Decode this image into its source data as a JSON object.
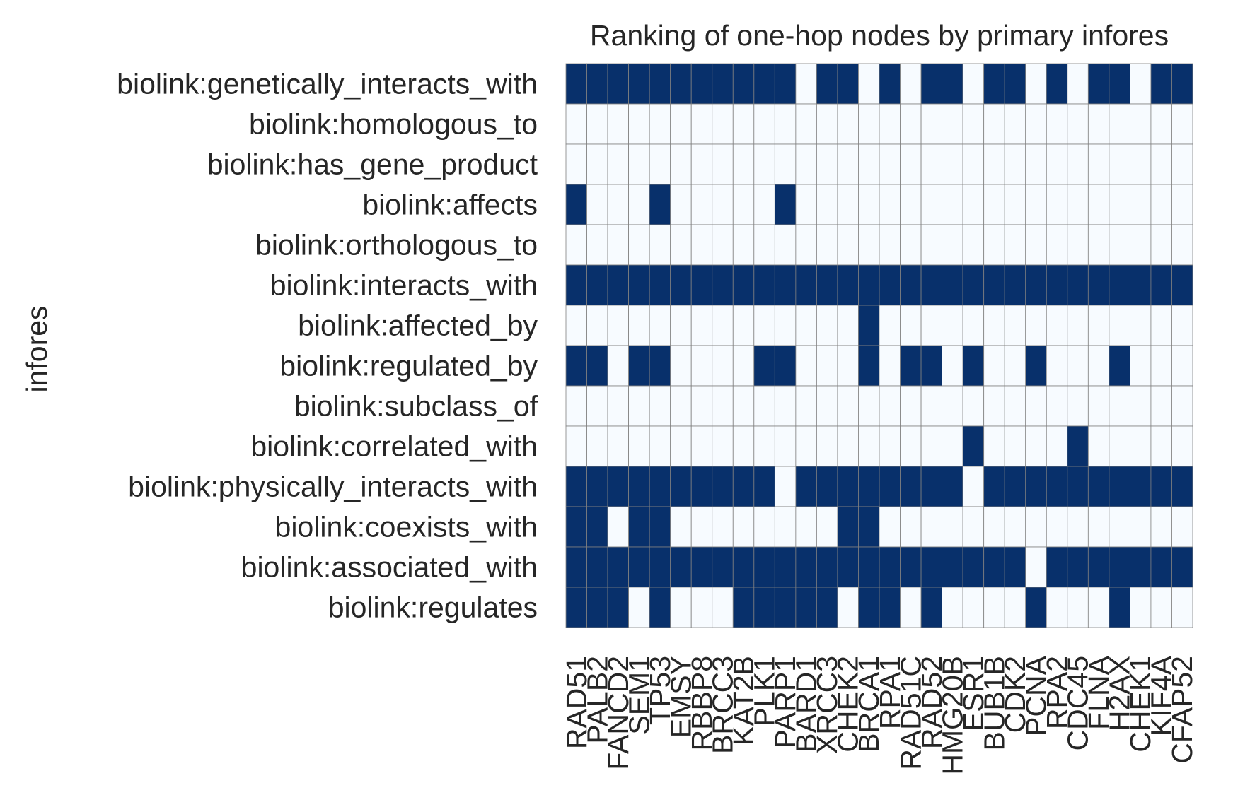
{
  "chart_data": {
    "type": "heatmap",
    "title": "Ranking of one-hop nodes by primary infores",
    "xlabel": "",
    "ylabel": "infores",
    "x_categories": [
      "RAD51",
      "PALB2",
      "FANCD2",
      "SEM1",
      "TP53",
      "EMSY",
      "RBBP8",
      "BRCC3",
      "KAT2B",
      "PLK1",
      "PARP1",
      "BARD1",
      "XRCC3",
      "CHEK2",
      "BRCA1",
      "RPA1",
      "RAD51C",
      "RAD52",
      "HMG20B",
      "ESR1",
      "BUB1B",
      "CDK2",
      "PCNA",
      "RPA2",
      "CDC45",
      "FLNA",
      "H2AX",
      "CHEK1",
      "KIF4A",
      "CFAP52"
    ],
    "y_categories": [
      "biolink:genetically_interacts_with",
      "biolink:homologous_to",
      "biolink:has_gene_product",
      "biolink:affects",
      "biolink:orthologous_to",
      "biolink:interacts_with",
      "biolink:affected_by",
      "biolink:regulated_by",
      "biolink:subclass_of",
      "biolink:correlated_with",
      "biolink:physically_interacts_with",
      "biolink:coexists_with",
      "biolink:associated_with",
      "biolink:regulates"
    ],
    "matrix": [
      [
        1,
        1,
        1,
        1,
        1,
        1,
        1,
        1,
        1,
        1,
        1,
        0,
        1,
        1,
        0,
        1,
        0,
        1,
        1,
        0,
        1,
        1,
        0,
        1,
        0,
        1,
        1,
        0,
        1,
        1
      ],
      [
        0,
        0,
        0,
        0,
        0,
        0,
        0,
        0,
        0,
        0,
        0,
        0,
        0,
        0,
        0,
        0,
        0,
        0,
        0,
        0,
        0,
        0,
        0,
        0,
        0,
        0,
        0,
        0,
        0,
        0
      ],
      [
        0,
        0,
        0,
        0,
        0,
        0,
        0,
        0,
        0,
        0,
        0,
        0,
        0,
        0,
        0,
        0,
        0,
        0,
        0,
        0,
        0,
        0,
        0,
        0,
        0,
        0,
        0,
        0,
        0,
        0
      ],
      [
        1,
        0,
        0,
        0,
        1,
        0,
        0,
        0,
        0,
        0,
        1,
        0,
        0,
        0,
        0,
        0,
        0,
        0,
        0,
        0,
        0,
        0,
        0,
        0,
        0,
        0,
        0,
        0,
        0,
        0
      ],
      [
        0,
        0,
        0,
        0,
        0,
        0,
        0,
        0,
        0,
        0,
        0,
        0,
        0,
        0,
        0,
        0,
        0,
        0,
        0,
        0,
        0,
        0,
        0,
        0,
        0,
        0,
        0,
        0,
        0,
        0
      ],
      [
        1,
        1,
        1,
        1,
        1,
        1,
        1,
        1,
        1,
        1,
        1,
        1,
        1,
        1,
        1,
        1,
        1,
        1,
        1,
        1,
        1,
        1,
        1,
        1,
        1,
        1,
        1,
        1,
        1,
        1
      ],
      [
        0,
        0,
        0,
        0,
        0,
        0,
        0,
        0,
        0,
        0,
        0,
        0,
        0,
        0,
        1,
        0,
        0,
        0,
        0,
        0,
        0,
        0,
        0,
        0,
        0,
        0,
        0,
        0,
        0,
        0
      ],
      [
        1,
        1,
        0,
        1,
        1,
        0,
        0,
        0,
        0,
        1,
        1,
        0,
        0,
        0,
        1,
        0,
        1,
        1,
        0,
        1,
        0,
        0,
        1,
        0,
        0,
        0,
        1,
        0,
        0,
        0
      ],
      [
        0,
        0,
        0,
        0,
        0,
        0,
        0,
        0,
        0,
        0,
        0,
        0,
        0,
        0,
        0,
        0,
        0,
        0,
        0,
        0,
        0,
        0,
        0,
        0,
        0,
        0,
        0,
        0,
        0,
        0
      ],
      [
        0,
        0,
        0,
        0,
        0,
        0,
        0,
        0,
        0,
        0,
        0,
        0,
        0,
        0,
        0,
        0,
        0,
        0,
        0,
        1,
        0,
        0,
        0,
        0,
        1,
        0,
        0,
        0,
        0,
        0
      ],
      [
        1,
        1,
        1,
        1,
        1,
        1,
        1,
        1,
        1,
        1,
        0,
        1,
        1,
        1,
        1,
        1,
        1,
        1,
        1,
        0,
        1,
        1,
        1,
        1,
        1,
        1,
        1,
        1,
        1,
        1
      ],
      [
        1,
        1,
        0,
        1,
        1,
        0,
        0,
        0,
        0,
        0,
        0,
        0,
        0,
        1,
        1,
        0,
        0,
        0,
        0,
        0,
        0,
        0,
        0,
        0,
        0,
        0,
        0,
        0,
        0,
        0
      ],
      [
        1,
        1,
        1,
        1,
        1,
        1,
        1,
        1,
        1,
        1,
        1,
        1,
        1,
        1,
        1,
        1,
        1,
        1,
        1,
        1,
        1,
        1,
        0,
        1,
        1,
        1,
        1,
        1,
        1,
        1
      ],
      [
        1,
        1,
        1,
        0,
        1,
        0,
        0,
        0,
        1,
        1,
        1,
        1,
        1,
        0,
        1,
        1,
        0,
        1,
        0,
        0,
        0,
        0,
        1,
        0,
        0,
        0,
        1,
        0,
        0,
        0
      ]
    ],
    "color_on": "#08306b",
    "color_off": "#f7fbff",
    "grid_color": "#808080",
    "grid": true,
    "legend": "none"
  }
}
